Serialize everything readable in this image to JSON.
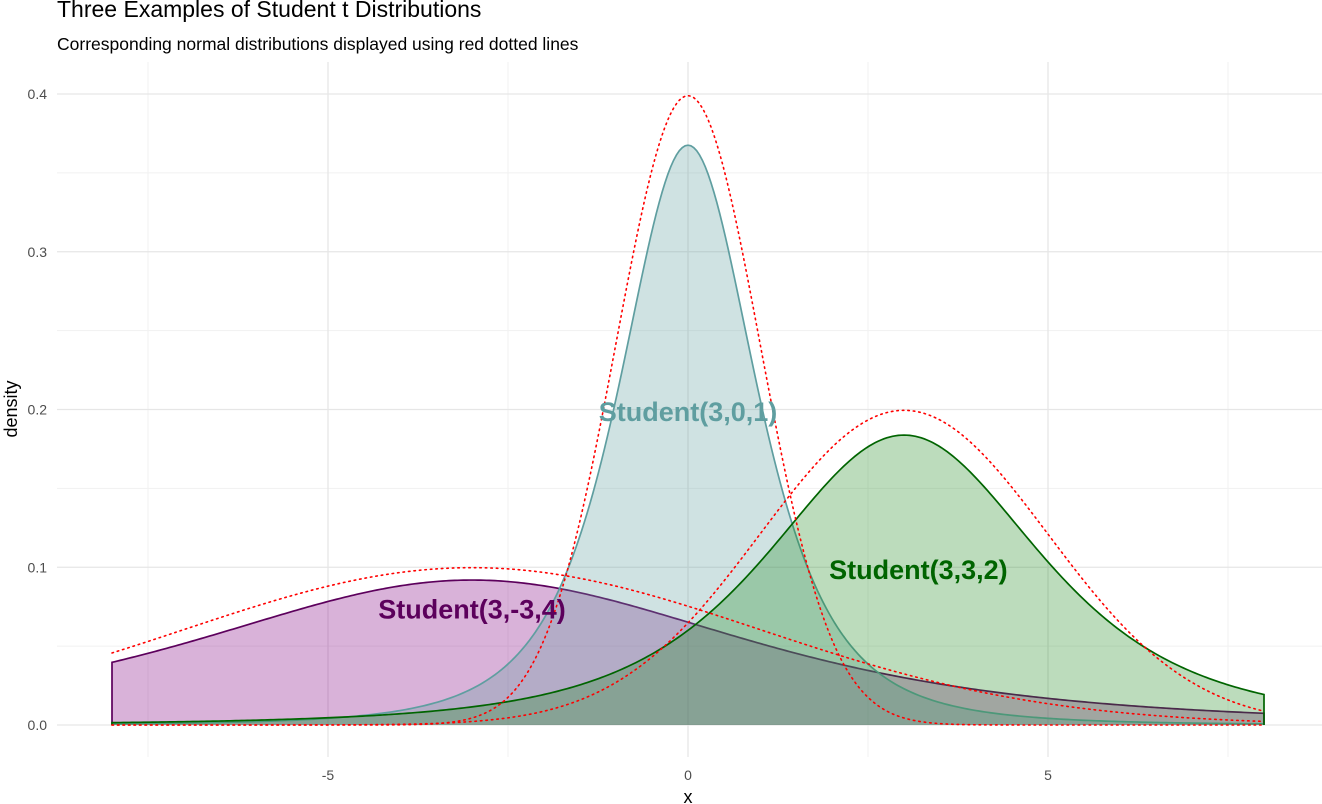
{
  "chart_data": {
    "type": "area",
    "title": "Three Examples of Student t Distributions",
    "subtitle": "Corresponding normal distributions displayed using red dotted lines",
    "xlabel": "x",
    "ylabel": "density",
    "xlim": [
      -8,
      8
    ],
    "ylim": [
      0,
      0.4
    ],
    "x_ticks": [
      -5,
      0,
      5
    ],
    "y_ticks": [
      0.0,
      0.1,
      0.2,
      0.3,
      0.4
    ],
    "x_tick_labels": [
      "-5",
      "0",
      "5"
    ],
    "y_tick_labels": [
      "0.0",
      "0.1",
      "0.2",
      "0.3",
      "0.4"
    ],
    "grid": true,
    "series": [
      {
        "name": "Student(3,-3,4)",
        "df": 3,
        "location": -3,
        "scale": 4,
        "line_color": "#5c005c",
        "fill_color": "#800080",
        "label_x": -3.0,
        "label_y": 0.074
      },
      {
        "name": "Student(3,0,1)",
        "df": 3,
        "location": 0,
        "scale": 1,
        "line_color": "#5f9ea0",
        "fill_color": "#5f9ea0",
        "label_x": 0.0,
        "label_y": 0.199
      },
      {
        "name": "Student(3,3,2)",
        "df": 3,
        "location": 3,
        "scale": 2,
        "line_color": "#006400",
        "fill_color": "#228b22",
        "label_x": 3.2,
        "label_y": 0.099
      }
    ],
    "normal_overlays": [
      {
        "mean": -3,
        "sd": 4
      },
      {
        "mean": 0,
        "sd": 1
      },
      {
        "mean": 3,
        "sd": 2
      }
    ],
    "normal_line_color": "#ff0000"
  }
}
